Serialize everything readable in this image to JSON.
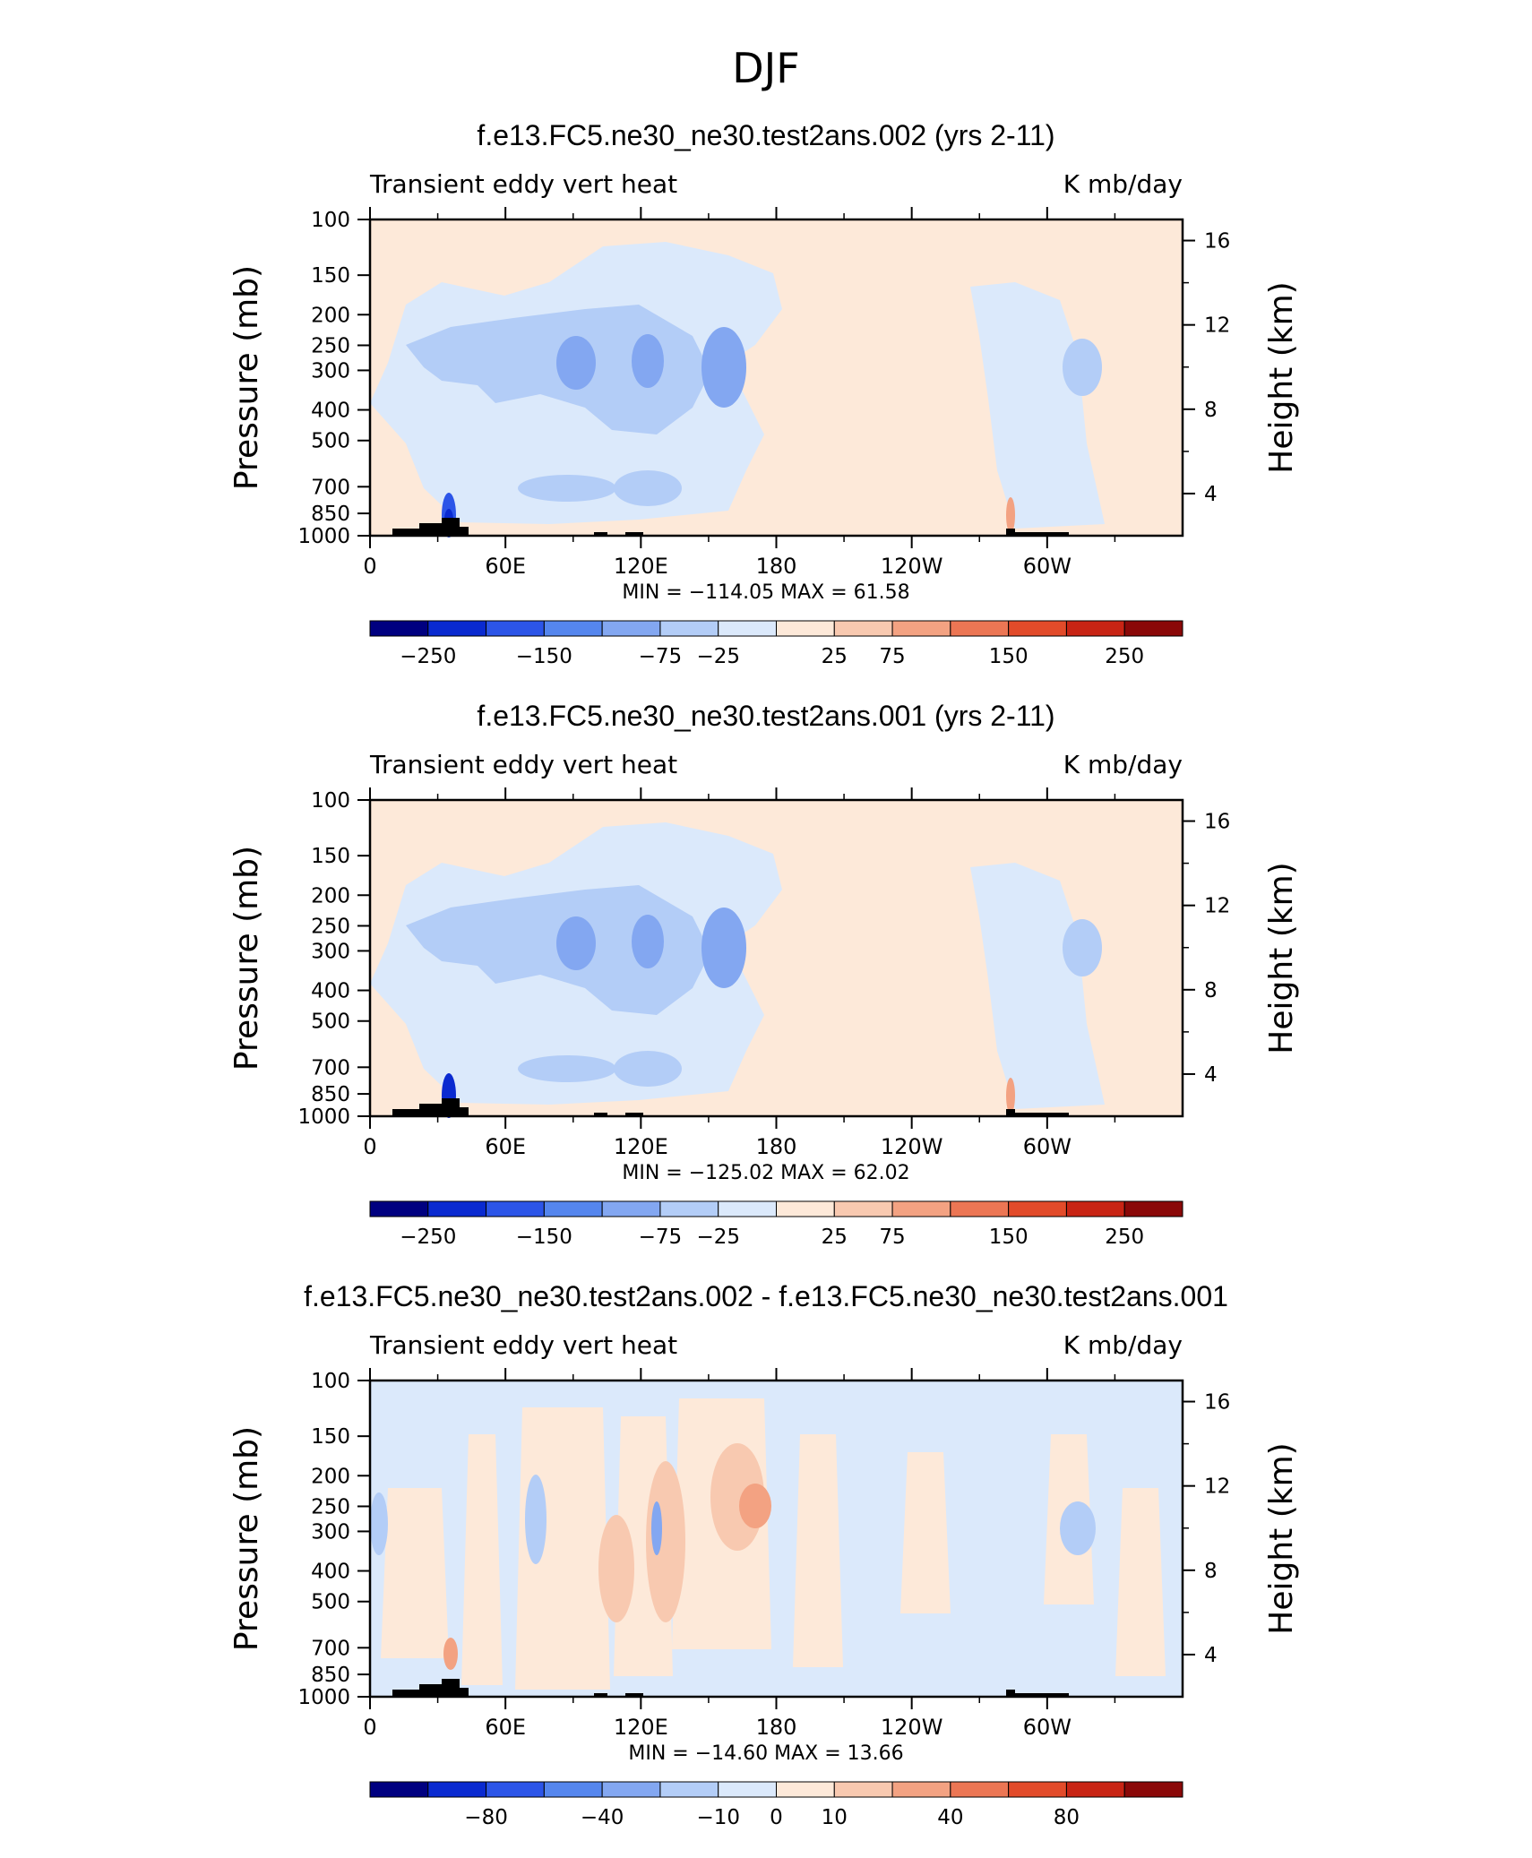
{
  "figure": {
    "suptitle": "DJF"
  },
  "colors": {
    "neg": [
      "#000080",
      "#0a2ad0",
      "#2c55e8",
      "#5586ee",
      "#83a7f1",
      "#b3cdf7",
      "#dbe9fb"
    ],
    "pos": [
      "#fde9d9",
      "#f8c9b0",
      "#f3a282",
      "#ec7654",
      "#e24b2a",
      "#c82414",
      "#8a0808"
    ],
    "topography": "#000000"
  },
  "chart_data": [
    {
      "type": "heatmap",
      "title": "f.e13.FC5.ne30_ne30.test2ans.002 (yrs 2-11)",
      "left_label": "Transient eddy vert heat",
      "right_label": "K mb/day",
      "ylabel": "Pressure (mb)",
      "ylabel_right": "Height (km)",
      "xticks": [
        "0",
        "60E",
        "120E",
        "180",
        "120W",
        "60W"
      ],
      "yticks": [
        "100",
        "150",
        "200",
        "250",
        "300",
        "400",
        "500",
        "700",
        "850",
        "1000"
      ],
      "yticks_right": [
        "16",
        "12",
        "8",
        "4"
      ],
      "stats": "MIN = −114.05   MAX =   61.58",
      "colorbar_labels": [
        "−250",
        "−150",
        "−75",
        "−25",
        "25",
        "75",
        "150",
        "250"
      ]
    },
    {
      "type": "heatmap",
      "title": "f.e13.FC5.ne30_ne30.test2ans.001 (yrs 2-11)",
      "left_label": "Transient eddy vert heat",
      "right_label": "K mb/day",
      "ylabel": "Pressure (mb)",
      "ylabel_right": "Height (km)",
      "xticks": [
        "0",
        "60E",
        "120E",
        "180",
        "120W",
        "60W"
      ],
      "yticks": [
        "100",
        "150",
        "200",
        "250",
        "300",
        "400",
        "500",
        "700",
        "850",
        "1000"
      ],
      "yticks_right": [
        "16",
        "12",
        "8",
        "4"
      ],
      "stats": "MIN = −125.02   MAX =   62.02",
      "colorbar_labels": [
        "−250",
        "−150",
        "−75",
        "−25",
        "25",
        "75",
        "150",
        "250"
      ]
    },
    {
      "type": "heatmap",
      "title": "f.e13.FC5.ne30_ne30.test2ans.002 - f.e13.FC5.ne30_ne30.test2ans.001",
      "left_label": "Transient eddy vert heat",
      "right_label": "K mb/day",
      "ylabel": "Pressure (mb)",
      "ylabel_right": "Height (km)",
      "xticks": [
        "0",
        "60E",
        "120E",
        "180",
        "120W",
        "60W"
      ],
      "yticks": [
        "100",
        "150",
        "200",
        "250",
        "300",
        "400",
        "500",
        "700",
        "850",
        "1000"
      ],
      "yticks_right": [
        "16",
        "12",
        "8",
        "4"
      ],
      "stats": "MIN = −14.60   MAX =   13.66",
      "colorbar_labels": [
        "−80",
        "−40",
        "−10",
        "0",
        "10",
        "40",
        "80"
      ]
    }
  ]
}
